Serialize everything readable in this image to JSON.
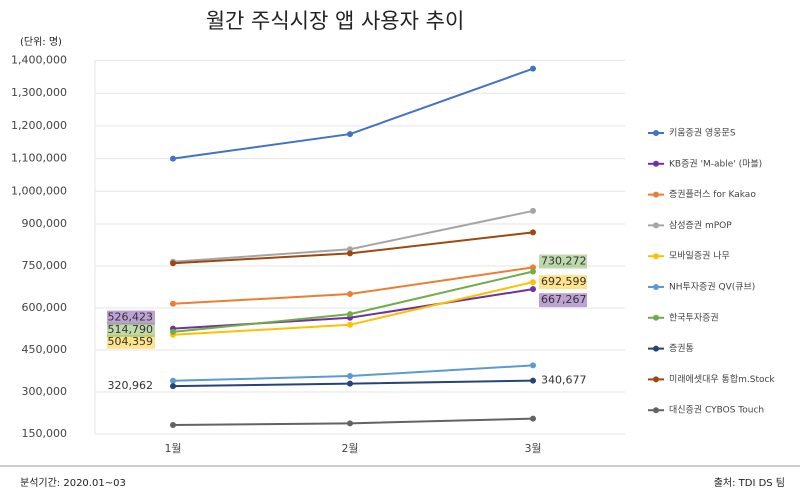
{
  "chart_data": {
    "type": "line",
    "title": "월간 주식시장 앱 사용자 추이",
    "unit_label": "(단위: 명)",
    "footer_left": "분석기간: 2020.01~03",
    "footer_right": "출처: TDI DS 팀",
    "categories": [
      "1월",
      "2월",
      "3월"
    ],
    "ylim": [
      150000,
      1400000
    ],
    "yticks": [
      {
        "value": 150000,
        "label": "150,000"
      },
      {
        "value": 300000,
        "label": "300,000"
      },
      {
        "value": 450000,
        "label": "450,000"
      },
      {
        "value": 600000,
        "label": "600,000"
      },
      {
        "value": 750000,
        "label": "750,000"
      },
      {
        "value": 900000,
        "label": "900,000"
      },
      {
        "value": 1000000,
        "label": "1,000,000"
      },
      {
        "value": 1100000,
        "label": "1,100,000"
      },
      {
        "value": 1200000,
        "label": "1,200,000"
      },
      {
        "value": 1300000,
        "label": "1,300,000"
      },
      {
        "value": 1400000,
        "label": "1,400,000"
      }
    ],
    "legend": "right",
    "series": [
      {
        "name": "키움증권 영웅문S",
        "color": "#4472c4",
        "values": [
          1100000,
          1175000,
          1375000
        ]
      },
      {
        "name": "KB증권 'M-able' (마블)",
        "color": "#7030a0",
        "values": [
          526423,
          565000,
          667267
        ],
        "value_labels": [
          "526,423",
          null,
          "667,267"
        ]
      },
      {
        "name": "증권플러스 for Kakao",
        "color": "#ed7d31",
        "values": [
          615000,
          650000,
          745000
        ]
      },
      {
        "name": "삼성증권 mPOP",
        "color": "#a5a5a5",
        "values": [
          765000,
          810000,
          940000
        ]
      },
      {
        "name": "모바일증권 나무",
        "color": "#ffc000",
        "values": [
          504359,
          540000,
          692599
        ],
        "value_labels": [
          "504,359",
          null,
          "692,599"
        ]
      },
      {
        "name": "NH투자증권 QV(큐브)",
        "color": "#5b9bd5",
        "values": [
          340000,
          357000,
          395000
        ]
      },
      {
        "name": "한국투자증권",
        "color": "#70ad47",
        "values": [
          514790,
          578000,
          730272
        ],
        "value_labels": [
          "514,790",
          null,
          "730,272"
        ]
      },
      {
        "name": "증권통",
        "color": "#264478",
        "values": [
          320962,
          330000,
          340677
        ],
        "value_labels": [
          "320,962",
          null,
          "340,677"
        ]
      },
      {
        "name": "미래에셋대우 통합m.Stock",
        "color": "#9e480e",
        "values": [
          760000,
          795000,
          870000
        ]
      },
      {
        "name": "대신증권 CYBOS Touch",
        "color": "#636363",
        "values": [
          182000,
          188000,
          205000
        ]
      }
    ]
  }
}
